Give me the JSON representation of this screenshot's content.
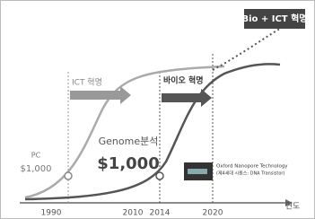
{
  "labels": {
    "bio_ict": "Bio + ICT 혁명",
    "ict": "ICT 혁명",
    "bio": "바이오 혁명",
    "pc": "PC",
    "pc_price": "$1,000",
    "genome": "Genome분석",
    "genome_price": "$1,000",
    "nanopore": "Oxford Nanopore Technology",
    "nanopore_sub": "(제4세대 시퀀스: DNA Transistor)"
  },
  "axis": {
    "ticks": [
      "1990",
      "2010",
      "2014",
      "2020"
    ],
    "label": "연도"
  }
}
